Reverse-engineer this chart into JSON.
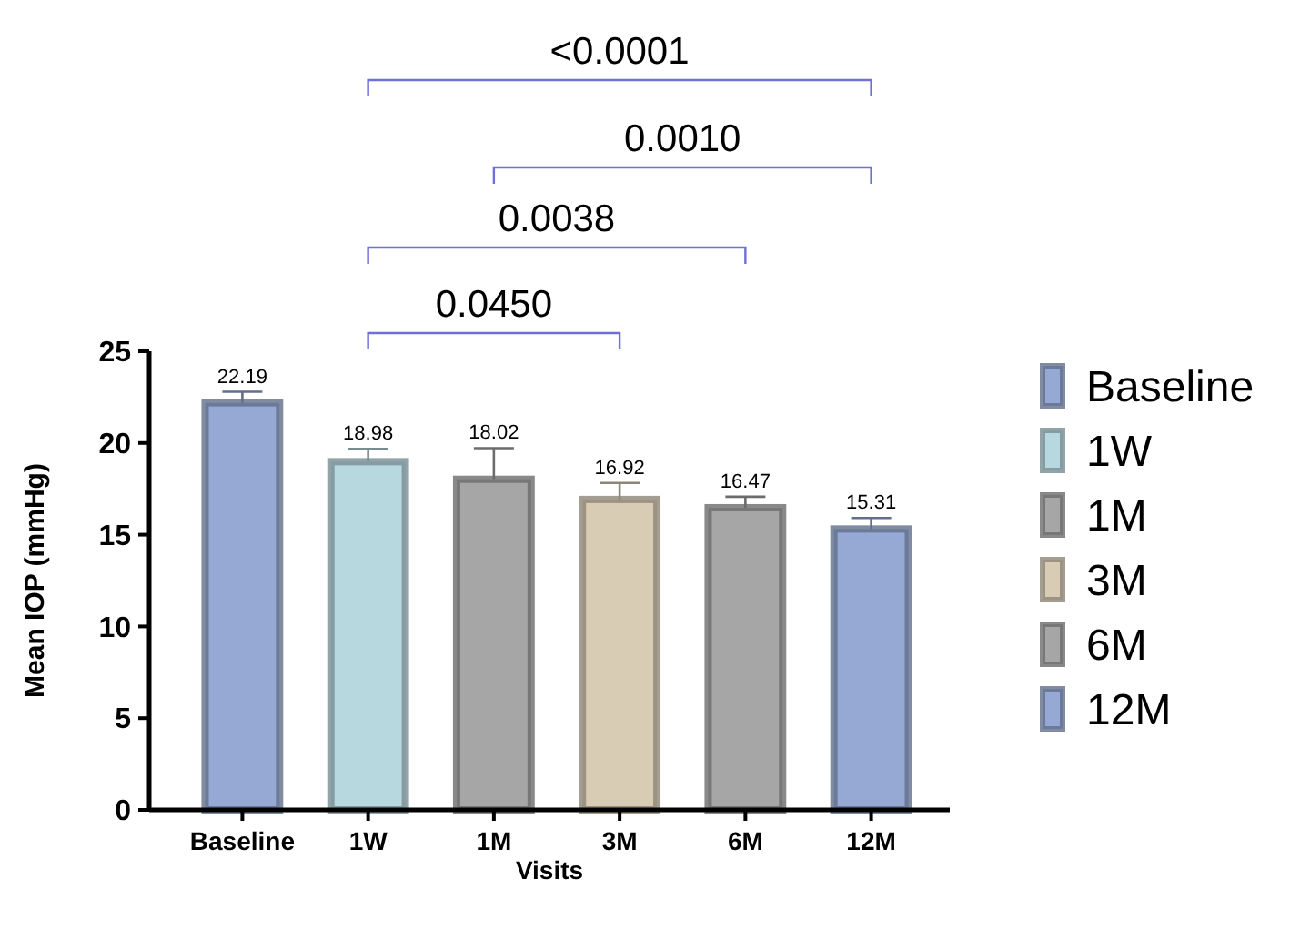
{
  "chart_data": {
    "type": "bar",
    "xlabel": "Visits",
    "ylabel": "Mean IOP (mmHg)",
    "categories": [
      "Baseline",
      "1W",
      "1M",
      "3M",
      "6M",
      "12M"
    ],
    "series": [
      {
        "name": "Baseline",
        "color": "#96a8d4",
        "values": [
          22.19,
          null,
          null,
          null,
          null,
          null
        ],
        "errors": [
          0.6,
          null,
          null,
          null,
          null,
          null
        ]
      },
      {
        "name": "1W",
        "color": "#b8d8e0",
        "values": [
          null,
          18.98,
          null,
          null,
          null,
          null
        ],
        "errors": [
          null,
          0.7,
          null,
          null,
          null,
          null
        ]
      },
      {
        "name": "1M",
        "color": "#a6a6a6",
        "values": [
          null,
          null,
          18.02,
          null,
          null,
          null
        ],
        "errors": [
          null,
          null,
          1.7,
          null,
          null,
          null
        ]
      },
      {
        "name": "3M",
        "color": "#d9ccb4",
        "values": [
          null,
          null,
          null,
          16.92,
          null,
          null
        ],
        "errors": [
          null,
          null,
          null,
          0.9,
          null,
          null
        ]
      },
      {
        "name": "6M",
        "color": "#a6a6a6",
        "values": [
          null,
          null,
          null,
          null,
          16.47,
          null
        ],
        "errors": [
          null,
          null,
          null,
          null,
          0.6,
          null
        ]
      },
      {
        "name": "12M",
        "color": "#96a8d4",
        "values": [
          null,
          null,
          null,
          null,
          null,
          15.31
        ],
        "errors": [
          null,
          null,
          null,
          null,
          null,
          0.6
        ]
      }
    ],
    "data_labels": true,
    "ylim": [
      0,
      25
    ],
    "yticks": [
      0,
      5,
      10,
      15,
      20,
      25
    ],
    "legend": "right",
    "annotations": [
      "<0.0001",
      "0.0010",
      "0.0038",
      "0.0450"
    ]
  }
}
